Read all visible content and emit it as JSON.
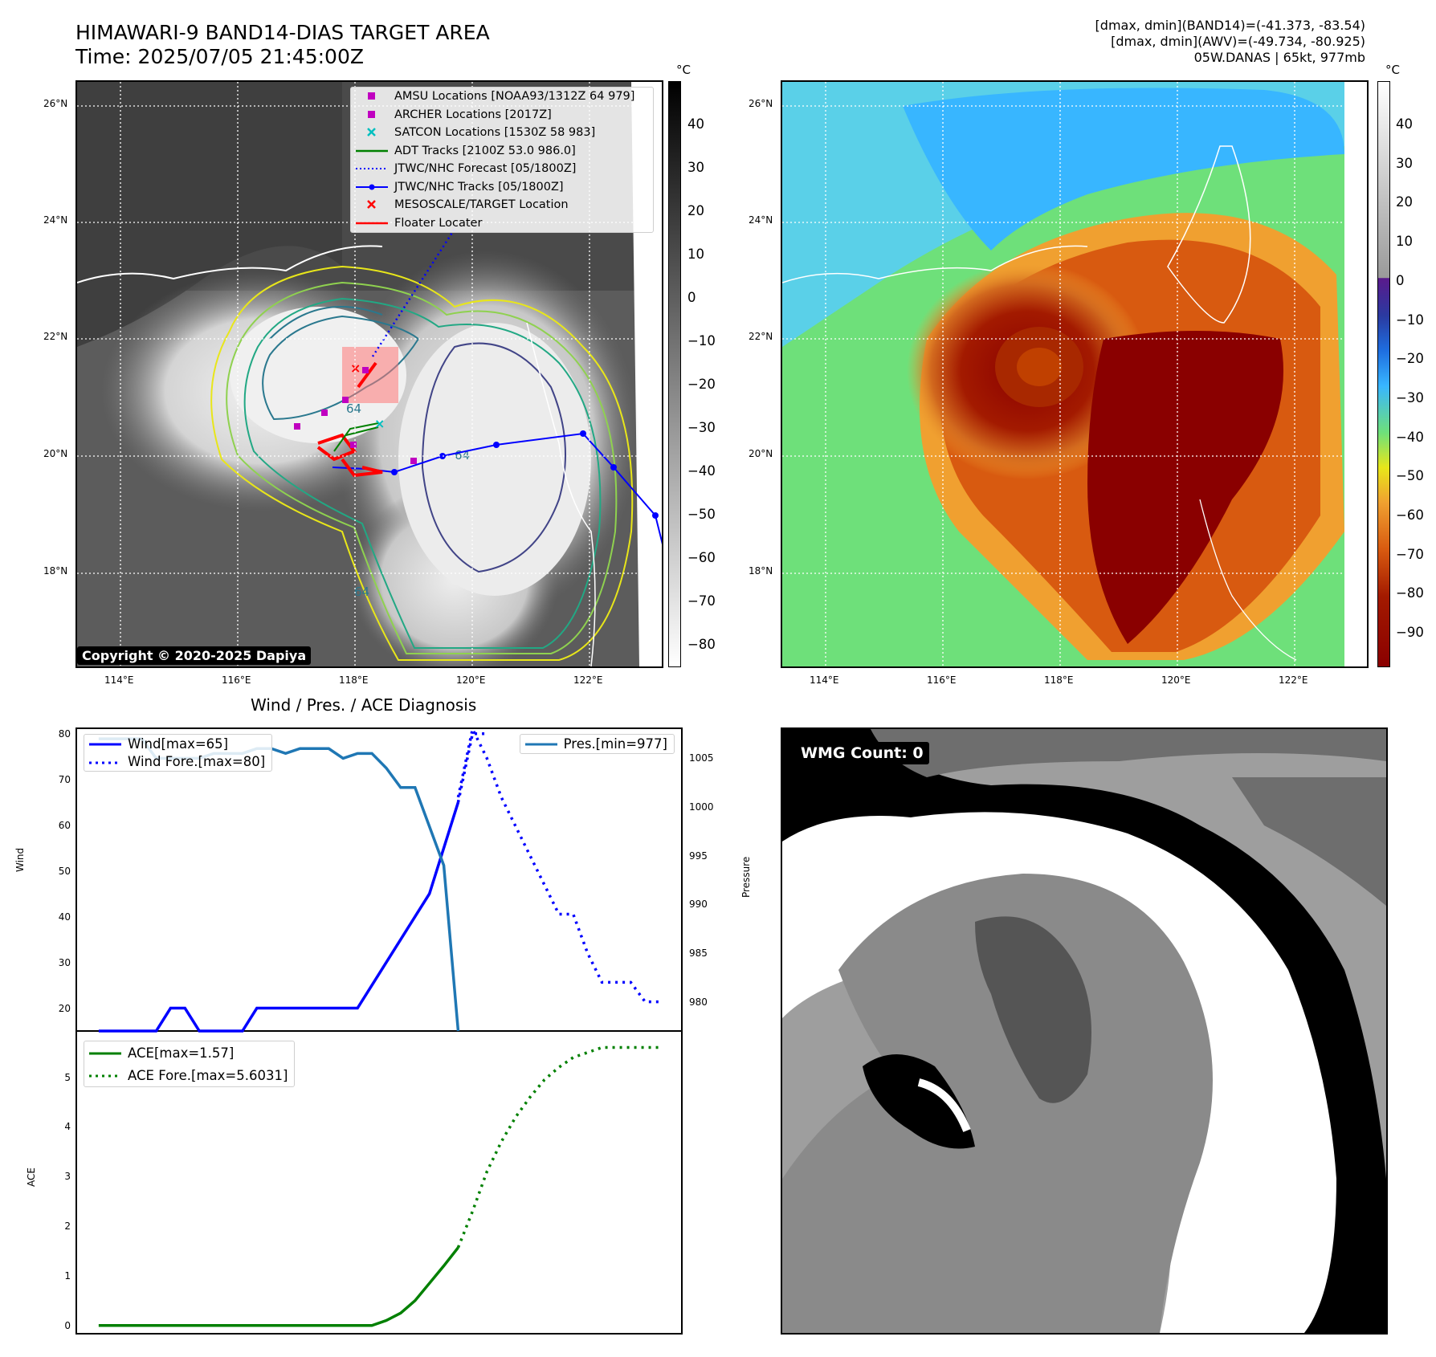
{
  "header": {
    "title": "HIMAWARI-9 BAND14-DIAS TARGET AREA",
    "time": "Time: 2025/07/05 21:45:00Z",
    "info_line1": "[dmax, dmin](BAND14)=(-41.373, -83.54)",
    "info_line2": "[dmax, dmin](AWV)=(-49.734, -80.925)",
    "info_line3": "05W.DANAS | 65kt, 977mb"
  },
  "map": {
    "lat_ticks": [
      "26°N",
      "24°N",
      "22°N",
      "20°N",
      "18°N"
    ],
    "lon_ticks": [
      "114°E",
      "116°E",
      "118°E",
      "120°E",
      "122°E"
    ],
    "copyright": "Copyright © 2020-2025 Dapiya",
    "contour_label": "64",
    "legend": [
      {
        "label": "AMSU Locations [NOAA93/1312Z 64 979]",
        "color": "#c000c0",
        "symbol": "square"
      },
      {
        "label": "ARCHER Locations [2017Z]",
        "color": "#c000c0",
        "symbol": "square"
      },
      {
        "label": "SATCON Locations [1530Z 58 983]",
        "color": "#00bfbf",
        "symbol": "x"
      },
      {
        "label": "ADT Tracks [2100Z 53.0 986.0]",
        "color": "#008000",
        "symbol": "line"
      },
      {
        "label": "JTWC/NHC Forecast [05/1800Z]",
        "color": "#0000ff",
        "symbol": "dotted"
      },
      {
        "label": "JTWC/NHC Tracks [05/1800Z]",
        "color": "#0000ff",
        "symbol": "line-dot"
      },
      {
        "label": "MESOSCALE/TARGET Location",
        "color": "#ff0000",
        "symbol": "x"
      },
      {
        "label": "Floater Locater",
        "color": "#ff0000",
        "symbol": "line"
      }
    ]
  },
  "colorbar_gray": {
    "unit": "°C",
    "ticks": [
      "40",
      "30",
      "20",
      "10",
      "0",
      "−10",
      "−20",
      "−30",
      "−40",
      "−50",
      "−60",
      "−70",
      "−80"
    ]
  },
  "colorbar_color": {
    "unit": "°C",
    "ticks": [
      "40",
      "30",
      "20",
      "10",
      "0",
      "−10",
      "−20",
      "−30",
      "−40",
      "−50",
      "−60",
      "−70",
      "−80",
      "−90"
    ]
  },
  "diagnosis": {
    "title": "Wind / Pres. / ACE Diagnosis",
    "wind_ylabel": "Wind",
    "pres_ylabel": "Pressure",
    "ace_ylabel": "ACE",
    "wind_ticks": [
      "80",
      "70",
      "60",
      "50",
      "40",
      "30",
      "20"
    ],
    "pres_ticks": [
      "1005",
      "1000",
      "995",
      "990",
      "985",
      "980"
    ],
    "ace_ticks": [
      "5",
      "4",
      "3",
      "2",
      "1",
      "0"
    ],
    "legend_wind": "Wind[max=65]",
    "legend_wind_fore": "Wind Fore.[max=80]",
    "legend_pres": "Pres.[min=977]",
    "legend_ace": "ACE[max=1.57]",
    "legend_ace_fore": "ACE Fore.[max=5.6031]"
  },
  "wmg": {
    "label": "WMG Count: 0"
  },
  "chart_data": [
    {
      "type": "line",
      "title": "Wind / Pres. / ACE Diagnosis",
      "ylabel": "Wind",
      "ylim": [
        15,
        81
      ],
      "series": [
        {
          "name": "Wind[max=65]",
          "x": [
            0,
            1,
            2,
            3,
            4,
            5,
            6,
            7,
            8,
            9,
            10,
            11,
            12,
            13,
            14,
            15,
            16,
            17,
            18,
            19,
            20,
            21,
            22,
            23,
            24,
            25
          ],
          "values": [
            15,
            15,
            15,
            15,
            15,
            20,
            20,
            15,
            15,
            15,
            15,
            20,
            20,
            20,
            20,
            20,
            20,
            20,
            20,
            25,
            30,
            35,
            40,
            45,
            55,
            65
          ]
        },
        {
          "name": "Wind Fore.[max=80]",
          "x": [
            25,
            26,
            27
          ],
          "values": [
            65,
            80,
            80
          ]
        }
      ]
    },
    {
      "type": "line",
      "ylabel": "Pressure",
      "ylim": [
        977,
        1008
      ],
      "series": [
        {
          "name": "Pres.[min=977]",
          "x": [
            0,
            1,
            2,
            3,
            4,
            5,
            6,
            7,
            8,
            9,
            10,
            11,
            12,
            13,
            14,
            15,
            16,
            17,
            18,
            19,
            20,
            21,
            22,
            23,
            24,
            25
          ],
          "values": [
            1007,
            1007,
            1007,
            1007,
            1005,
            1005,
            1005,
            1005,
            1005.5,
            1005.5,
            1005.5,
            1006,
            1006,
            1005.5,
            1006,
            1006,
            1006,
            1005,
            1005.5,
            1005.5,
            1004,
            1002,
            1002,
            998,
            994,
            977
          ]
        },
        {
          "name": "",
          "x": [
            25,
            26,
            27,
            28,
            29,
            30,
            31,
            32,
            33,
            34,
            35,
            36,
            37,
            38,
            39
          ],
          "values": [
            1001,
            1008,
            1005,
            1001,
            998,
            995,
            992,
            989,
            989,
            985,
            982,
            982,
            982,
            980,
            980
          ]
        }
      ]
    },
    {
      "type": "line",
      "ylabel": "ACE",
      "ylim": [
        -0.15,
        5.9
      ],
      "series": [
        {
          "name": "ACE[max=1.57]",
          "x": [
            0,
            5,
            10,
            15,
            18,
            19,
            20,
            21,
            22,
            23,
            24,
            25
          ],
          "values": [
            0,
            0,
            0,
            0,
            0,
            0,
            0.1,
            0.25,
            0.5,
            0.85,
            1.2,
            1.57
          ]
        },
        {
          "name": "ACE Fore.[max=5.6031]",
          "x": [
            25,
            26,
            27,
            28,
            29,
            30,
            31,
            32,
            33,
            34,
            35,
            36,
            37,
            38,
            39
          ],
          "values": [
            1.57,
            2.3,
            3.1,
            3.7,
            4.2,
            4.6,
            4.95,
            5.2,
            5.4,
            5.5,
            5.6,
            5.6,
            5.6,
            5.6,
            5.6
          ]
        }
      ]
    }
  ]
}
